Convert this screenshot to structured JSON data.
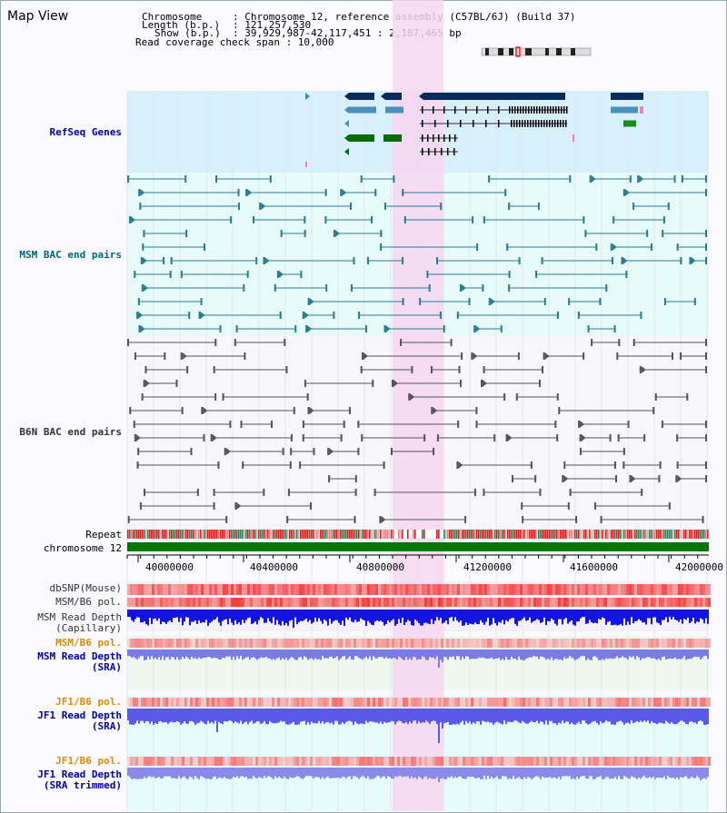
{
  "title": "Map View",
  "info": {
    "chromosome_key": "Chromosome",
    "chromosome_val": ": Chromosome 12, reference assembly (C57BL/6J) (Build 37)",
    "length_key": "Length (b.p.)",
    "length_val": ": 121,257,530",
    "show_key": "Show (b.p.)",
    "show_val": ": 39,929,987-42,117,451 : 2,187,465 bp",
    "coverage_line": "Read coverage check span : 10,000"
  },
  "tracks": {
    "refseq": "RefSeq Genes",
    "msm_bac": "MSM BAC end pairs",
    "b6n_bac": "B6N BAC end pairs",
    "repeat": "Repeat",
    "chromosome": "chromosome 12",
    "dbsnp": "dbSNP(Mouse)",
    "msm_pol1": "MSM/B6 pol.",
    "msm_depth_cap_1": "MSM Read Depth",
    "msm_depth_cap_2": "(Capillary)",
    "msm_pol2": "MSM/B6 pol.",
    "msm_depth_sra_1": "MSM Read Depth",
    "msm_depth_sra_2": "(SRA)",
    "jf1_pol1": "JF1/B6 pol.",
    "jf1_depth_sra_1": "JF1 Read Depth",
    "jf1_depth_sra_2": "(SRA)",
    "jf1_pol2": "JF1/B6 pol.",
    "jf1_depth_trim_1": "JF1 Read Depth",
    "jf1_depth_trim_2": "(SRA trimmed)"
  },
  "axis_ticks": [
    "40000000",
    "40400000",
    "40800000",
    "41200000",
    "41600000",
    "42000000"
  ],
  "colors": {
    "highlight": "#f6d6f0",
    "refseq_bg": "#d8f0fb",
    "msm_color": "#2a7a90",
    "b6n_color": "#555555",
    "label_blue": "#0000aa",
    "label_teal": "#006680",
    "label_orange": "#e08a00",
    "chrom_green": "#007700"
  }
}
